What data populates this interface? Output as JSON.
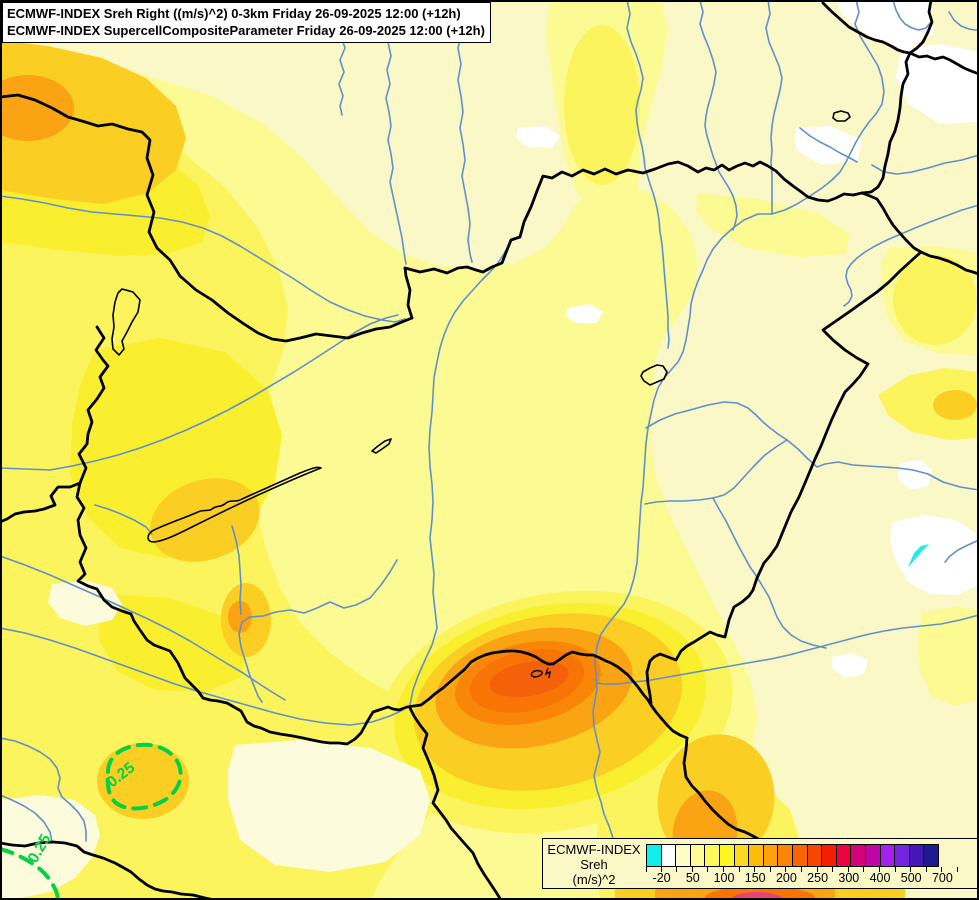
{
  "header": {
    "title_line1": "ECMWF-INDEX Sreh Right ((m/s)^2) 0-3km Friday 26-09-2025 12:00 (+12h)",
    "title_line2": "ECMWF-INDEX SupercellCompositeParameter Friday 26-09-2025 12:00 (+12h)"
  },
  "map": {
    "contour_labels": {
      "supercell_1": "0.25",
      "supercell_2": "0.25"
    }
  },
  "legend": {
    "title": "ECMWF-INDEX",
    "variable": "Sreh",
    "units": "(m/s)^2",
    "tick_labels": [
      "-20",
      "50",
      "100",
      "150",
      "200",
      "250",
      "300",
      "400",
      "500",
      "700"
    ],
    "label_boundary_indices": [
      1,
      3,
      5,
      7,
      9,
      11,
      13,
      15,
      17,
      19
    ],
    "swatch_colors": [
      "#0FEDED",
      "#FFFFFF",
      "#FDFCC4",
      "#FDFB94",
      "#FDF95B",
      "#FEF623",
      "#FDD822",
      "#FCBC08",
      "#FCA010",
      "#FB8405",
      "#F96502",
      "#F74502",
      "#F61D02",
      "#EB0440",
      "#D30576",
      "#BE06A6",
      "#A51FF0",
      "#7724E2",
      "#4517B5",
      "#1E1B8C"
    ]
  },
  "palette": {
    "base": "#FAF8C6",
    "yellow_light": "#FCFA93",
    "yellow": "#FBF45C",
    "yellow_bright": "#FAEF2F",
    "gold": "#FBCE24",
    "orange": "#FAA313",
    "orange_deep": "#F98606",
    "orange_deeper": "#F87405",
    "red_core": "#F4610A",
    "hot_pink": "#E0457A",
    "river": "#6090CC",
    "border": "#000000",
    "contour_green": "#00D245",
    "cyan": "#19EDED",
    "white_patch": "#FFFFFF",
    "pale_patch": "#FCFBDC"
  }
}
